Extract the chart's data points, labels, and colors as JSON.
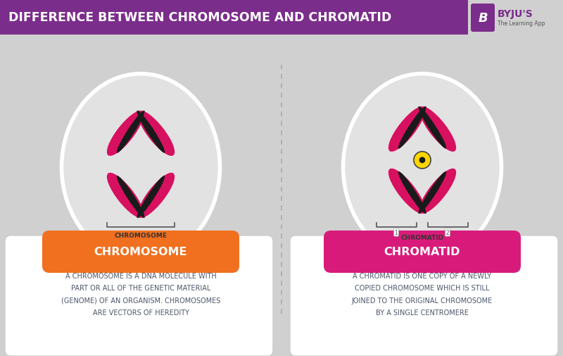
{
  "title": "DIFFERENCE BETWEEN CHROMOSOME AND CHROMATID",
  "title_bg": "#7B2D8B",
  "title_color": "#FFFFFF",
  "bg_color": "#D0D0D0",
  "byju_purple": "#7B2D8B",
  "left_label": "CHROMOSOME",
  "right_label": "CHROMATID",
  "left_pill_color": "#F07020",
  "right_pill_color": "#D81B7A",
  "left_text": "A CHROMOSOME IS A DNA MOLECULE WITH\nPART OR ALL OF THE GENETIC MATERIAL\n(GENOME) OF AN ORGANISM. CHROMOSOMES\nARE VECTORS OF HEREDITY",
  "right_text": "A CHROMATID IS ONE COPY OF A NEWLY\nCOPIED CHROMOSOME WHICH IS STILL\nJOINED TO THE ORIGINAL CHROMOSOME\nBY A SINGLE CENTROMERE",
  "text_color": "#4A5568",
  "card_bg": "#FFFFFF",
  "chromosome_pink": "#D81060",
  "chromosome_dark": "#1A1A1A",
  "centromere_yellow": "#FFD700"
}
